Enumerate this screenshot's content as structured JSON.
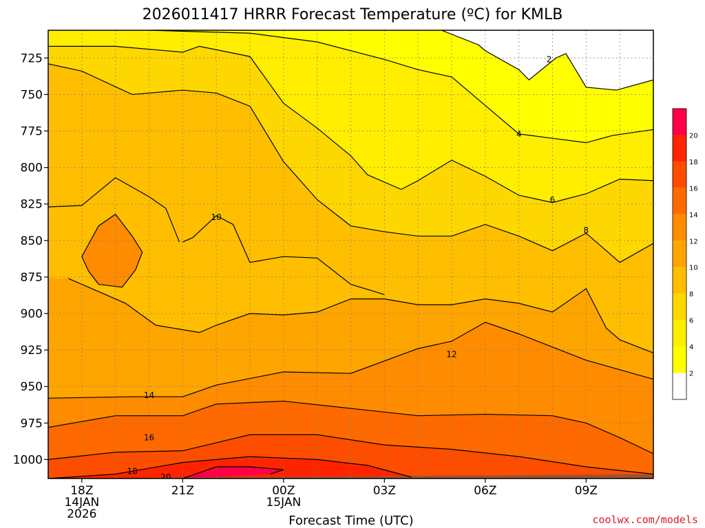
{
  "title": "2026011417 HRRR Forecast Temperature (ºC) for KMLB",
  "credit": "coolwx.com/models",
  "chart_data": {
    "type": "heatmap",
    "variable": "Temperature (ºC)",
    "xlabel": "Forecast Time (UTC)",
    "ylabel": "",
    "x_ticks": [
      {
        "hour": 18,
        "lines": [
          "18Z",
          "14JAN",
          "2026"
        ]
      },
      {
        "hour": 21,
        "lines": [
          "21Z"
        ]
      },
      {
        "hour": 24,
        "lines": [
          "00Z",
          "15JAN"
        ]
      },
      {
        "hour": 27,
        "lines": [
          "03Z"
        ]
      },
      {
        "hour": 30,
        "lines": [
          "06Z"
        ]
      },
      {
        "hour": 33,
        "lines": [
          "09Z"
        ]
      }
    ],
    "xlim": [
      17,
      35
    ],
    "y_ticks": [
      725,
      750,
      775,
      800,
      825,
      850,
      875,
      900,
      925,
      950,
      975,
      1000
    ],
    "y_tick_labels": [
      "725",
      "750",
      "775",
      "800",
      "825",
      "850",
      "875",
      "900",
      "925",
      "950",
      "975",
      "1000"
    ],
    "ylim": [
      706,
      1013
    ],
    "y_axis_inverted": true,
    "grid": true,
    "colorbar": {
      "levels": [
        0,
        2,
        4,
        6,
        8,
        10,
        12,
        14,
        16,
        18,
        20,
        22
      ],
      "labels": [
        "2",
        "4",
        "6",
        "8",
        "10",
        "12",
        "14",
        "16",
        "18",
        "20"
      ],
      "colors": [
        "#ffffff",
        "#ffff00",
        "#ffee00",
        "#ffd700",
        "#ffbf00",
        "#ffa500",
        "#ff8c00",
        "#ff6a00",
        "#ff4d00",
        "#ff2400",
        "#ff0048"
      ]
    },
    "ground_color": "#a0522d",
    "contours": [
      {
        "level": 2,
        "label": "2",
        "label_at": [
          31.9,
          726
        ],
        "points": [
          [
            28.7,
            706
          ],
          [
            29.8,
            716
          ],
          [
            30,
            720
          ],
          [
            31,
            733
          ],
          [
            31.3,
            740
          ],
          [
            32.1,
            725
          ],
          [
            32.4,
            722
          ],
          [
            33.0,
            745
          ],
          [
            33.9,
            747
          ],
          [
            35,
            740
          ]
        ]
      },
      {
        "level": 4,
        "label": "4",
        "label_at": [
          31,
          777
        ],
        "points": [
          [
            20.0,
            706
          ],
          [
            23.0,
            708
          ],
          [
            25.0,
            714
          ],
          [
            27.0,
            726
          ],
          [
            28.0,
            733
          ],
          [
            29.0,
            738
          ],
          [
            31.0,
            777
          ],
          [
            32.0,
            780
          ],
          [
            33.0,
            783
          ],
          [
            33.8,
            778
          ],
          [
            35,
            774
          ]
        ]
      },
      {
        "level": 6,
        "label": "6",
        "label_at": [
          32,
          822
        ],
        "points": [
          [
            17,
            717
          ],
          [
            19.0,
            717
          ],
          [
            21.0,
            721
          ],
          [
            21.5,
            717
          ],
          [
            23.0,
            724
          ],
          [
            24.0,
            756
          ],
          [
            25.0,
            773
          ],
          [
            26.0,
            792
          ],
          [
            26.5,
            805
          ],
          [
            27.5,
            815
          ],
          [
            28.0,
            809
          ],
          [
            29.0,
            795
          ],
          [
            30.0,
            806
          ],
          [
            31.0,
            819
          ],
          [
            32.0,
            824
          ],
          [
            33.0,
            818
          ],
          [
            34.0,
            808
          ],
          [
            35,
            809
          ]
        ]
      },
      {
        "level": 8,
        "label": "8",
        "label_at": [
          33,
          843
        ],
        "points": [
          [
            17,
            729
          ],
          [
            18.0,
            734
          ],
          [
            19.5,
            750
          ],
          [
            21.0,
            747
          ],
          [
            22.0,
            749
          ],
          [
            23.0,
            758
          ],
          [
            24.0,
            796
          ],
          [
            25.0,
            822
          ],
          [
            26.0,
            840
          ],
          [
            27.0,
            844
          ],
          [
            28.0,
            847
          ],
          [
            29.0,
            847
          ],
          [
            30.0,
            839
          ],
          [
            31.0,
            847
          ],
          [
            32.0,
            857
          ],
          [
            33.0,
            845
          ],
          [
            33.4,
            853
          ],
          [
            34.0,
            865
          ],
          [
            35,
            852
          ]
        ]
      },
      {
        "level": 10,
        "label": "10",
        "label_at": [
          22,
          834
        ],
        "points": [
          [
            17.6,
            876
          ],
          [
            19.3,
            893
          ],
          [
            20.2,
            908
          ],
          [
            21.5,
            913
          ],
          [
            22,
            908
          ],
          [
            23,
            900
          ],
          [
            24,
            901
          ],
          [
            25,
            899
          ],
          [
            26,
            890
          ],
          [
            27,
            890
          ],
          [
            28,
            894
          ],
          [
            29,
            894
          ],
          [
            30,
            890
          ],
          [
            31,
            893
          ],
          [
            32,
            899
          ],
          [
            33,
            883
          ],
          [
            33.6,
            910
          ],
          [
            34,
            918
          ],
          [
            35,
            927
          ]
        ]
      },
      {
        "level": 10,
        "label": "",
        "label_at": [
          0,
          0
        ],
        "points": [
          [
            21,
            851
          ],
          [
            21.3,
            848
          ],
          [
            22.0,
            833
          ],
          [
            22.5,
            839
          ],
          [
            23.0,
            865
          ],
          [
            24.0,
            861
          ],
          [
            25.0,
            862
          ],
          [
            26.0,
            880
          ],
          [
            27.0,
            887
          ]
        ]
      },
      {
        "level": 10,
        "label": "",
        "label_at": [
          0,
          0
        ],
        "points": [
          [
            17,
            827
          ],
          [
            18.0,
            826
          ],
          [
            19.0,
            807
          ],
          [
            20.0,
            820
          ],
          [
            20.5,
            828
          ],
          [
            20.9,
            851
          ]
        ]
      },
      {
        "level": 12,
        "label": "12",
        "label_at": [
          29,
          928
        ],
        "points": [
          [
            17,
            958
          ],
          [
            19.5,
            957
          ],
          [
            21,
            957
          ],
          [
            22,
            949
          ],
          [
            24,
            940
          ],
          [
            26,
            941
          ],
          [
            28,
            924
          ],
          [
            29,
            919
          ],
          [
            30,
            906
          ],
          [
            31,
            914
          ],
          [
            32,
            923
          ],
          [
            33,
            932
          ],
          [
            35,
            945
          ]
        ]
      },
      {
        "level": 14,
        "label": "14",
        "label_at": [
          20,
          956
        ],
        "points": [
          [
            17,
            978
          ],
          [
            19,
            970
          ],
          [
            20,
            970
          ],
          [
            21,
            970
          ],
          [
            22,
            962
          ],
          [
            24,
            960
          ],
          [
            26,
            965
          ],
          [
            28,
            970
          ],
          [
            30,
            969
          ],
          [
            32,
            970
          ],
          [
            33,
            975
          ],
          [
            34,
            985
          ],
          [
            35,
            996
          ]
        ]
      },
      {
        "level": 16,
        "label": "16",
        "label_at": [
          20,
          985
        ],
        "points": [
          [
            17,
            1000
          ],
          [
            19,
            995
          ],
          [
            21,
            994
          ],
          [
            23,
            983
          ],
          [
            25,
            983
          ],
          [
            27,
            990
          ],
          [
            29,
            993
          ],
          [
            31,
            998
          ],
          [
            33,
            1005
          ],
          [
            35,
            1010
          ]
        ]
      },
      {
        "level": 18,
        "label": "18",
        "label_at": [
          19.5,
          1008
        ],
        "points": [
          [
            17,
            1013
          ],
          [
            19,
            1010
          ],
          [
            21,
            1002
          ],
          [
            23,
            998
          ],
          [
            25,
            1000
          ],
          [
            26.5,
            1004
          ],
          [
            27.8,
            1012
          ]
        ]
      },
      {
        "level": 20,
        "label": "20",
        "label_at": [
          20.5,
          1012
        ],
        "points": [
          [
            21,
            1013
          ],
          [
            22,
            1005
          ],
          [
            23,
            1005
          ],
          [
            24,
            1007
          ],
          [
            23.6,
            1010
          ]
        ]
      },
      {
        "level": 8,
        "label": "",
        "label_at": [
          0,
          0
        ],
        "points": [
          [
            18.0,
            861
          ],
          [
            18.5,
            840
          ],
          [
            19.0,
            832
          ],
          [
            19.5,
            847
          ],
          [
            19.8,
            858
          ],
          [
            19.6,
            870
          ],
          [
            19.2,
            882
          ],
          [
            18.5,
            880
          ],
          [
            18.2,
            871
          ],
          [
            18.0,
            861
          ]
        ]
      }
    ]
  }
}
